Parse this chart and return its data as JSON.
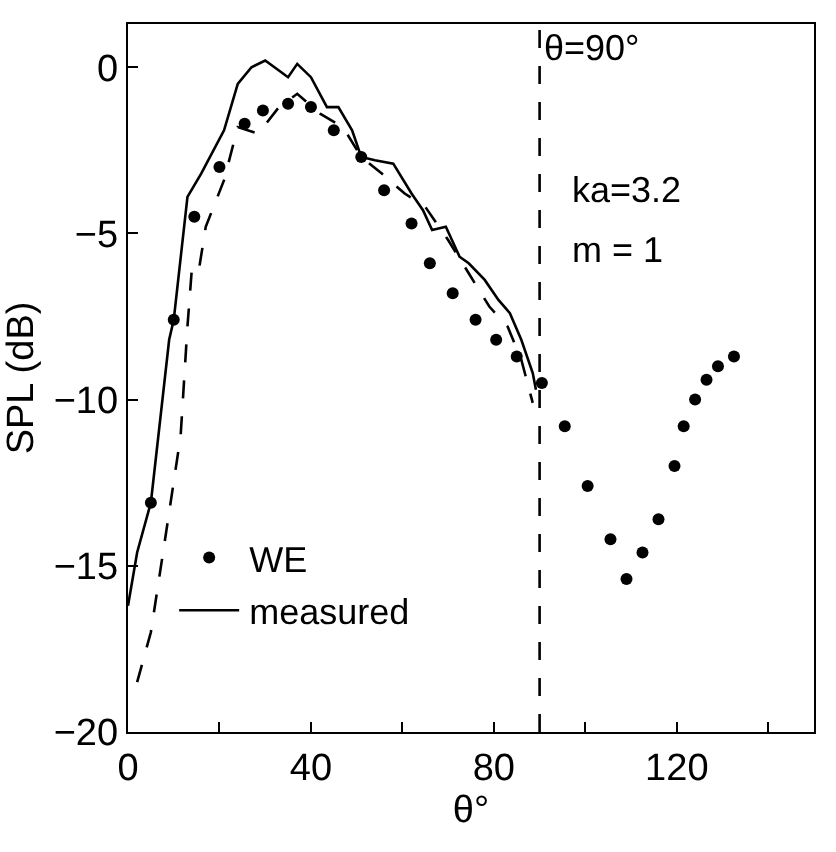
{
  "chart_data": {
    "type": "line",
    "xlabel": "θ°",
    "ylabel": "SPL (dB)",
    "xlim": [
      0,
      150
    ],
    "ylim": [
      -20,
      1.3
    ],
    "xticks": [
      0,
      {
        "value": 20,
        "label": null
      },
      40,
      {
        "value": 60,
        "label": null
      },
      80,
      {
        "value": 100,
        "label": null
      },
      120,
      {
        "value": 140,
        "label": null
      }
    ],
    "yticks": [
      0,
      -5,
      -10,
      -15,
      -20
    ],
    "grid": false,
    "legend": "bottom left",
    "series": [
      {
        "name": "WE",
        "type": "scatter",
        "marker": "circle",
        "color": "#000000",
        "x": [
          5,
          10,
          14.5,
          20,
          25.5,
          29.5,
          35,
          40,
          45,
          51,
          56,
          62,
          66,
          71,
          76,
          80.5,
          85,
          90.5,
          95.5,
          100.5,
          105.5,
          109,
          112.5,
          116,
          119.5,
          121.5,
          124,
          126.5,
          129,
          132.5
        ],
        "values": [
          -13.1,
          -7.6,
          -4.5,
          -3.0,
          -1.7,
          -1.3,
          -1.1,
          -1.2,
          -1.9,
          -2.7,
          -3.7,
          -4.7,
          -5.9,
          -6.8,
          -7.6,
          -8.2,
          -8.7,
          -9.5,
          -10.8,
          -12.6,
          -14.2,
          -15.4,
          -14.6,
          -13.6,
          -12.0,
          -10.8,
          -10.0,
          -9.4,
          -9.0,
          -8.7
        ]
      },
      {
        "name": "measured",
        "line_style": "solid",
        "color": "#000000",
        "x": [
          0,
          2,
          5,
          9,
          10,
          13,
          16,
          21,
          24,
          27,
          30,
          33,
          35,
          37,
          40,
          43.5,
          46,
          49,
          51,
          54,
          58,
          62,
          64.5,
          66.5,
          69.5,
          72.5,
          74.5,
          78,
          81,
          83.5,
          86,
          88.5,
          89.2
        ],
        "values": [
          -16.2,
          -14.6,
          -13.1,
          -8.2,
          -7.6,
          -3.9,
          -3.2,
          -1.9,
          -0.5,
          0,
          0.2,
          -0.1,
          -0.3,
          0.1,
          -0.3,
          -1.2,
          -1.2,
          -1.9,
          -2.7,
          -2.8,
          -2.9,
          -3.8,
          -4.3,
          -4.9,
          -4.8,
          -5.7,
          -5.9,
          -6.4,
          -7.0,
          -7.4,
          -8.2,
          -9.2,
          -9.7
        ]
      },
      {
        "line_style": "dashed",
        "color": "#000000",
        "x": [
          2,
          5,
          8,
          11.5,
          13,
          14,
          15.5,
          17,
          21,
          24,
          28.5,
          33,
          37,
          42,
          47,
          51,
          55.5,
          60.5,
          65,
          70,
          74.5,
          79,
          83,
          86,
          88.5
        ],
        "values": [
          -18.5,
          -17.0,
          -14.3,
          -11.1,
          -7.8,
          -6.0,
          -6.1,
          -4.8,
          -3.4,
          -1.8,
          -2.0,
          -1.2,
          -0.8,
          -1.4,
          -1.8,
          -2.7,
          -3.2,
          -3.8,
          -4.2,
          -5.2,
          -6.2,
          -7.2,
          -7.8,
          -8.8,
          -10.1
        ]
      }
    ],
    "ref_lines": [
      {
        "axis": "x",
        "value": 90,
        "label": "θ=90°",
        "line_style": "dashed",
        "color": "#000000"
      }
    ],
    "annotations": [
      "ka=3.2",
      "m = 1"
    ]
  }
}
